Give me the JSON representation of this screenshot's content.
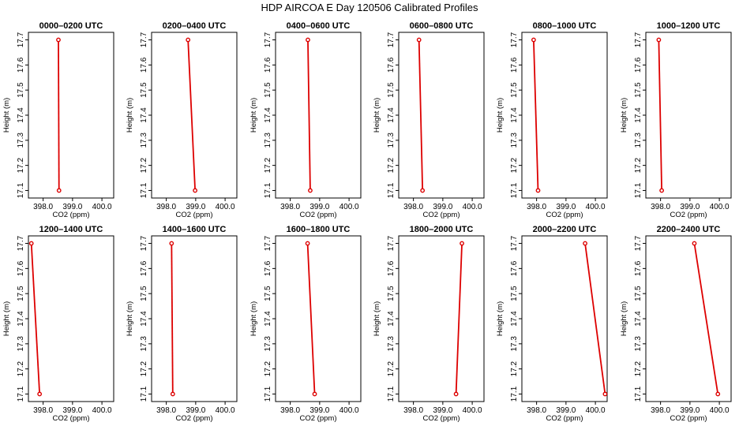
{
  "figure": {
    "title": "HDP AIRCOA E  Day 120506  Calibrated Profiles"
  },
  "colors": {
    "series_line": "#dd0000",
    "marker": "#dd0000",
    "axes": "#000000"
  },
  "chart_data": [
    {
      "type": "line",
      "title": "0000–0200 UTC",
      "xlabel": "CO2 (ppm)",
      "ylabel": "Height (m)",
      "xlim": [
        397.5,
        400.4
      ],
      "ylim": [
        17.07,
        17.73
      ],
      "xticks": [
        "398.0",
        "399.0",
        "400.0"
      ],
      "yticks": [
        "17.1",
        "17.2",
        "17.3",
        "17.4",
        "17.5",
        "17.6",
        "17.7"
      ],
      "x": [
        398.52,
        398.54
      ],
      "y": [
        17.7,
        17.1
      ]
    },
    {
      "type": "line",
      "title": "0200–0400 UTC",
      "xlabel": "CO2 (ppm)",
      "ylabel": "Height (m)",
      "xlim": [
        397.5,
        400.4
      ],
      "ylim": [
        17.07,
        17.73
      ],
      "xticks": [
        "398.0",
        "399.0",
        "400.0"
      ],
      "yticks": [
        "17.1",
        "17.2",
        "17.3",
        "17.4",
        "17.5",
        "17.6",
        "17.7"
      ],
      "x": [
        398.74,
        398.98
      ],
      "y": [
        17.7,
        17.1
      ]
    },
    {
      "type": "line",
      "title": "0400–0600 UTC",
      "xlabel": "CO2 (ppm)",
      "ylabel": "Height (m)",
      "xlim": [
        397.5,
        400.4
      ],
      "ylim": [
        17.07,
        17.73
      ],
      "xticks": [
        "398.0",
        "399.0",
        "400.0"
      ],
      "yticks": [
        "17.1",
        "17.2",
        "17.3",
        "17.4",
        "17.5",
        "17.6",
        "17.7"
      ],
      "x": [
        398.6,
        398.68
      ],
      "y": [
        17.7,
        17.1
      ]
    },
    {
      "type": "line",
      "title": "0600–0800 UTC",
      "xlabel": "CO2 (ppm)",
      "ylabel": "Height (m)",
      "xlim": [
        397.5,
        400.4
      ],
      "ylim": [
        17.07,
        17.73
      ],
      "xticks": [
        "398.0",
        "399.0",
        "400.0"
      ],
      "yticks": [
        "17.1",
        "17.2",
        "17.3",
        "17.4",
        "17.5",
        "17.6",
        "17.7"
      ],
      "x": [
        398.19,
        398.31
      ],
      "y": [
        17.7,
        17.1
      ]
    },
    {
      "type": "line",
      "title": "0800–1000 UTC",
      "xlabel": "CO2 (ppm)",
      "ylabel": "Height (m)",
      "xlim": [
        397.5,
        400.4
      ],
      "ylim": [
        17.07,
        17.73
      ],
      "xticks": [
        "398.0",
        "399.0",
        "400.0"
      ],
      "yticks": [
        "17.1",
        "17.2",
        "17.3",
        "17.4",
        "17.5",
        "17.6",
        "17.7"
      ],
      "x": [
        397.9,
        398.05
      ],
      "y": [
        17.7,
        17.1
      ]
    },
    {
      "type": "line",
      "title": "1000–1200 UTC",
      "xlabel": "CO2 (ppm)",
      "ylabel": "Height (m)",
      "xlim": [
        397.5,
        400.4
      ],
      "ylim": [
        17.07,
        17.73
      ],
      "xticks": [
        "398.0",
        "399.0",
        "400.0"
      ],
      "yticks": [
        "17.1",
        "17.2",
        "17.3",
        "17.4",
        "17.5",
        "17.6",
        "17.7"
      ],
      "x": [
        397.94,
        398.04
      ],
      "y": [
        17.7,
        17.1
      ]
    },
    {
      "type": "line",
      "title": "1200–1400 UTC",
      "xlabel": "CO2 (ppm)",
      "ylabel": "Height (m)",
      "xlim": [
        397.5,
        400.4
      ],
      "ylim": [
        17.07,
        17.73
      ],
      "xticks": [
        "398.0",
        "399.0",
        "400.0"
      ],
      "yticks": [
        "17.1",
        "17.2",
        "17.3",
        "17.4",
        "17.5",
        "17.6",
        "17.7"
      ],
      "x": [
        397.6,
        397.88
      ],
      "y": [
        17.7,
        17.1
      ]
    },
    {
      "type": "line",
      "title": "1400–1600 UTC",
      "xlabel": "CO2 (ppm)",
      "ylabel": "Height (m)",
      "xlim": [
        397.5,
        400.4
      ],
      "ylim": [
        17.07,
        17.73
      ],
      "xticks": [
        "398.0",
        "399.0",
        "400.0"
      ],
      "yticks": [
        "17.1",
        "17.2",
        "17.3",
        "17.4",
        "17.5",
        "17.6",
        "17.7"
      ],
      "x": [
        398.18,
        398.22
      ],
      "y": [
        17.7,
        17.1
      ]
    },
    {
      "type": "line",
      "title": "1600–1800 UTC",
      "xlabel": "CO2 (ppm)",
      "ylabel": "Height (m)",
      "xlim": [
        397.5,
        400.4
      ],
      "ylim": [
        17.07,
        17.73
      ],
      "xticks": [
        "398.0",
        "399.0",
        "400.0"
      ],
      "yticks": [
        "17.1",
        "17.2",
        "17.3",
        "17.4",
        "17.5",
        "17.6",
        "17.7"
      ],
      "x": [
        398.59,
        398.83
      ],
      "y": [
        17.7,
        17.1
      ]
    },
    {
      "type": "line",
      "title": "1800–2000 UTC",
      "xlabel": "CO2 (ppm)",
      "ylabel": "Height (m)",
      "xlim": [
        397.5,
        400.4
      ],
      "ylim": [
        17.07,
        17.73
      ],
      "xticks": [
        "398.0",
        "399.0",
        "400.0"
      ],
      "yticks": [
        "17.1",
        "17.2",
        "17.3",
        "17.4",
        "17.5",
        "17.6",
        "17.7"
      ],
      "x": [
        399.65,
        399.45
      ],
      "y": [
        17.7,
        17.1
      ]
    },
    {
      "type": "line",
      "title": "2000–2200 UTC",
      "xlabel": "CO2 (ppm)",
      "ylabel": "Height (m)",
      "xlim": [
        397.5,
        400.4
      ],
      "ylim": [
        17.07,
        17.73
      ],
      "xticks": [
        "398.0",
        "399.0",
        "400.0"
      ],
      "yticks": [
        "17.1",
        "17.2",
        "17.3",
        "17.4",
        "17.5",
        "17.6",
        "17.7"
      ],
      "x": [
        399.65,
        400.33
      ],
      "y": [
        17.7,
        17.1
      ]
    },
    {
      "type": "line",
      "title": "2200–2400 UTC",
      "xlabel": "CO2 (ppm)",
      "ylabel": "Height (m)",
      "xlim": [
        397.5,
        400.4
      ],
      "ylim": [
        17.07,
        17.73
      ],
      "xticks": [
        "398.0",
        "399.0",
        "400.0"
      ],
      "yticks": [
        "17.1",
        "17.2",
        "17.3",
        "17.4",
        "17.5",
        "17.6",
        "17.7"
      ],
      "x": [
        399.15,
        399.95
      ],
      "y": [
        17.7,
        17.1
      ]
    }
  ]
}
